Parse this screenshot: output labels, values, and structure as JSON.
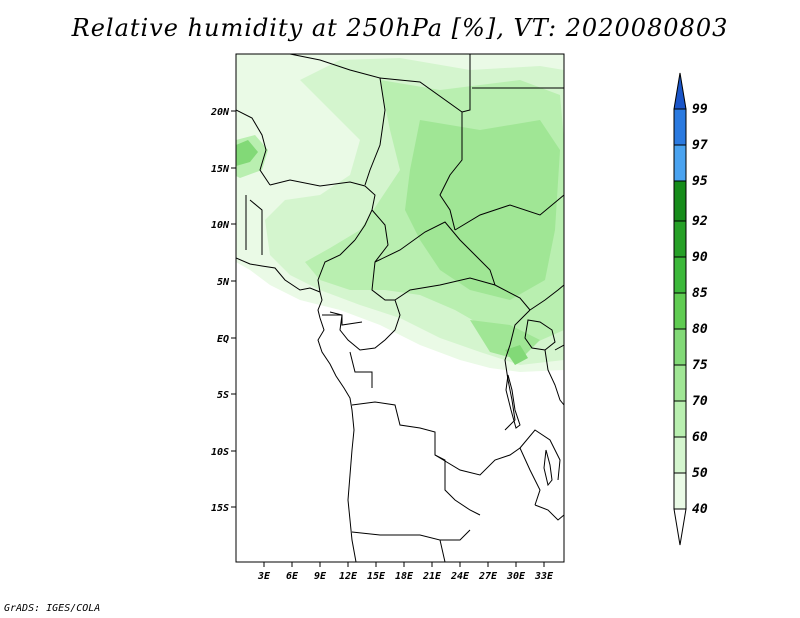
{
  "title": "Relative humidity at 250hPa [%], VT: 2020080803",
  "credit": "GrADS: IGES/COLA",
  "map": {
    "x_labels": [
      "3E",
      "6E",
      "9E",
      "12E",
      "15E",
      "18E",
      "21E",
      "24E",
      "27E",
      "30E",
      "33E"
    ],
    "y_labels": [
      "20N",
      "15N",
      "10N",
      "5N",
      "EQ",
      "5S",
      "10S",
      "15S"
    ]
  },
  "colorbar": {
    "labels": [
      "40",
      "50",
      "60",
      "70",
      "75",
      "80",
      "85",
      "90",
      "92",
      "95",
      "97",
      "99"
    ],
    "colors": [
      "#eafae6",
      "#d4f5ce",
      "#b9efb0",
      "#a0e695",
      "#82d977",
      "#60cc52",
      "#3cb83a",
      "#26a027",
      "#168c1a",
      "#4aa3f0",
      "#2b7ae0",
      "#1a55c8"
    ]
  }
}
